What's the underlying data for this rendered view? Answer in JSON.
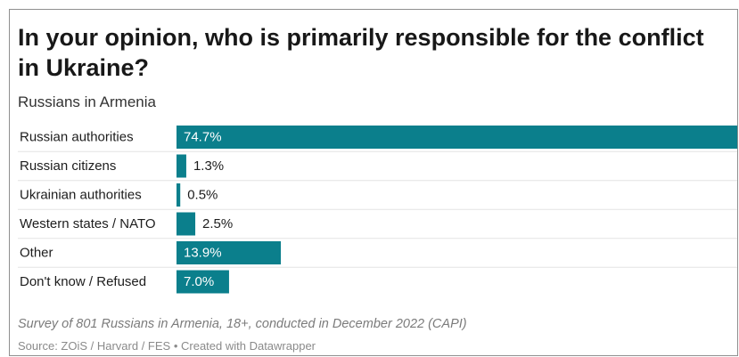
{
  "title": "In your opinion, who is primarily responsible for the conflict in Ukraine?",
  "subtitle": "Russians in Armenia",
  "note": "Survey of 801 Russians in Armenia, 18+, conducted in December 2022 (CAPI)",
  "source": "Source: ZOiS / Harvard / FES • Created with Datawrapper",
  "colors": {
    "bar": "#0b7f8c",
    "row_divider": "#e3e3e3",
    "label_inside": "#ffffff",
    "label_outside": "#1d1d1d"
  },
  "chart_data": {
    "type": "bar",
    "orientation": "horizontal",
    "categories": [
      "Russian authorities",
      "Russian citizens",
      "Ukrainian authorities",
      "Western states / NATO",
      "Other",
      "Don't know / Refused"
    ],
    "values": [
      74.7,
      1.3,
      0.5,
      2.5,
      13.9,
      7.0
    ],
    "value_labels": [
      "74.7%",
      "1.3%",
      "0.5%",
      "2.5%",
      "13.9%",
      "7.0%"
    ],
    "unit": "%",
    "xlim": [
      0,
      74.7
    ],
    "grid": false,
    "legend": "none"
  }
}
